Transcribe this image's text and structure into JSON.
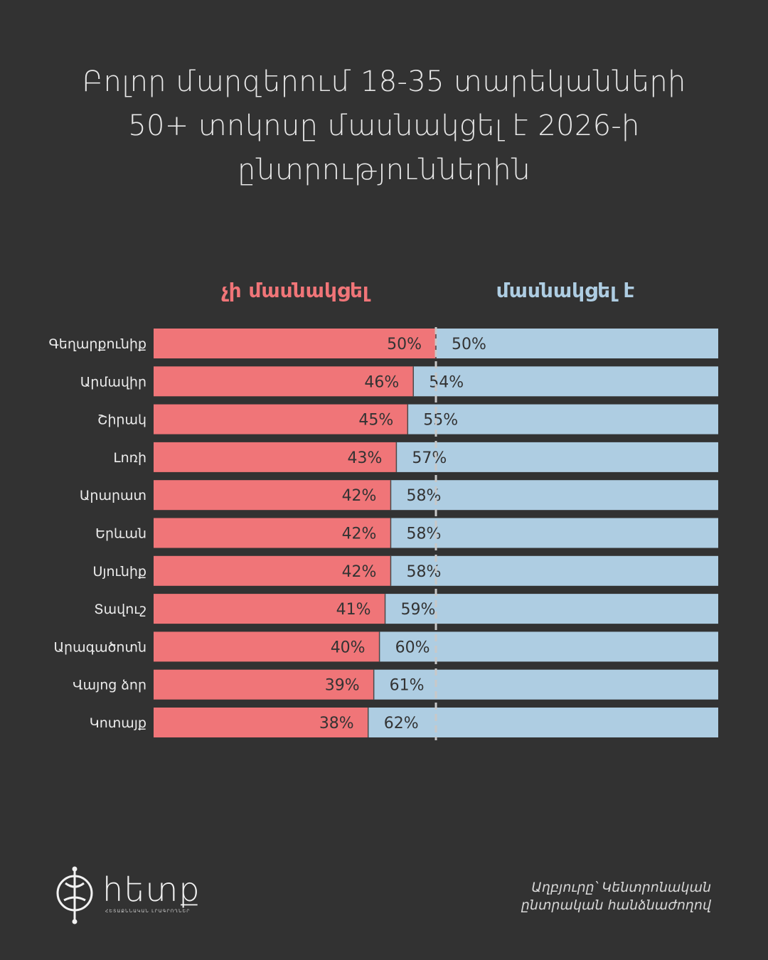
{
  "title": {
    "line1": "Բոլոր մարզերում 18-35 տարեկանների",
    "line2": "50+ տոկոսը մասնակցել է 2026-ի",
    "line3": "ընտրություններին"
  },
  "legend": {
    "no_label": "չի մասնակցել",
    "yes_label": "մասնակցել է"
  },
  "colors": {
    "background": "#323232",
    "no": "#f07578",
    "yes": "#aecde2",
    "divider": "#c8c8c8",
    "bar_text": "#333333",
    "region_text": "#ececec"
  },
  "chart_data": {
    "type": "bar",
    "orientation": "horizontal-stacked-100",
    "categories": [
      "Գեղարքունիք",
      "Արմավիր",
      "Շիրակ",
      "Լոռի",
      "Արարատ",
      "Երևան",
      "Սյունիք",
      "Տավուշ",
      "Արագածոտն",
      "Վայոց ձոր",
      "Կոտայք"
    ],
    "series": [
      {
        "name": "չի մասնակցել",
        "values": [
          50,
          46,
          45,
          43,
          42,
          42,
          42,
          41,
          40,
          39,
          38
        ],
        "labels": [
          "50%",
          "46%",
          "45%",
          "43%",
          "42%",
          "42%",
          "42%",
          "41%",
          "40%",
          "39%",
          "38%"
        ]
      },
      {
        "name": "մասնակցել է",
        "values": [
          50,
          54,
          55,
          57,
          58,
          58,
          58,
          59,
          60,
          61,
          62
        ],
        "labels": [
          "50%",
          "54%",
          "55%",
          "57%",
          "58%",
          "58%",
          "58%",
          "59%",
          "60%",
          "61%",
          "62%"
        ]
      }
    ],
    "reference_line": 50,
    "xlim": [
      0,
      100
    ]
  },
  "logo": {
    "word": "hետք",
    "sub": "ՀԵՏԱՔՆՆԱԿԱՆ ԼՐԱԳՐՈՂՆԵՐ"
  },
  "source": {
    "line1": "Աղբյուրը՝ Կենտրոնական",
    "line2": "ընտրական հանձնաժողով"
  }
}
